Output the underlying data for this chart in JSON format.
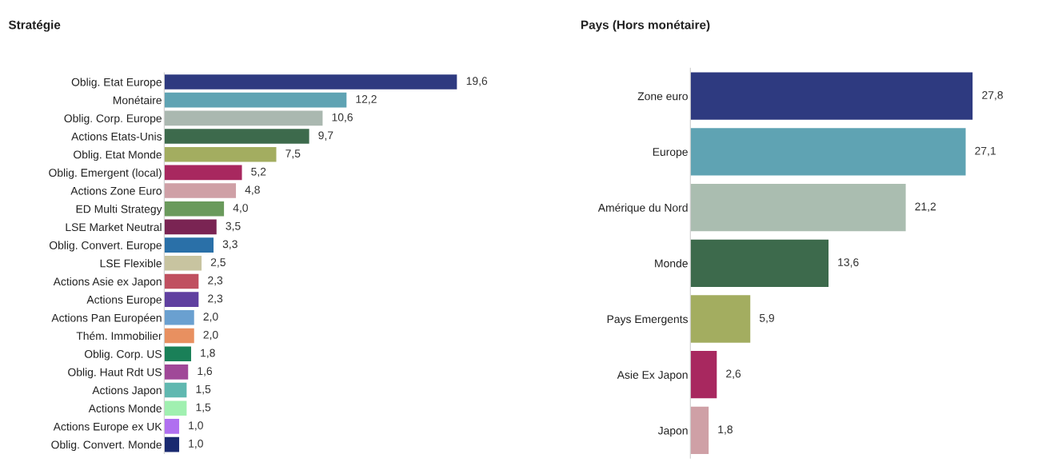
{
  "chart_data": [
    {
      "type": "bar",
      "orientation": "horizontal",
      "title": "Stratégie",
      "categories": [
        "Oblig. Etat Europe",
        "Monétaire",
        "Oblig. Corp. Europe",
        "Actions Etats-Unis",
        "Oblig. Etat Monde",
        "Oblig. Emergent (local)",
        "Actions Zone Euro",
        "ED Multi Strategy",
        "LSE Market Neutral",
        "Oblig. Convert. Europe",
        "LSE Flexible",
        "Actions Asie ex Japon",
        "Actions Europe",
        "Actions Pan Européen",
        "Thém. Immobilier",
        "Oblig. Corp. US",
        "Oblig. Haut Rdt US",
        "Actions Japon",
        "Actions Monde",
        "Actions Europe ex UK",
        "Oblig. Convert. Monde"
      ],
      "values": [
        19.6,
        12.2,
        10.6,
        9.7,
        7.5,
        5.2,
        4.8,
        4.0,
        3.5,
        3.3,
        2.5,
        2.3,
        2.3,
        2.0,
        2.0,
        1.8,
        1.6,
        1.5,
        1.5,
        1.0,
        1.0
      ],
      "value_labels": [
        "19,6",
        "12,2",
        "10,6",
        "9,7",
        "7,5",
        "5,2",
        "4,8",
        "4,0",
        "3,5",
        "3,3",
        "2,5",
        "2,3",
        "2,3",
        "2,0",
        "2,0",
        "1,8",
        "1,6",
        "1,5",
        "1,5",
        "1,0",
        "1,0"
      ],
      "colors": [
        "#2e3a80",
        "#5fa3b3",
        "#aab8b0",
        "#3d6a4c",
        "#a3ad60",
        "#a8285f",
        "#cfa0a6",
        "#6a9a5c",
        "#7a2453",
        "#2a70a8",
        "#c8c4a0",
        "#c05060",
        "#6040a0",
        "#6aa0d0",
        "#e89060",
        "#1a8058",
        "#a04898",
        "#60b8b0",
        "#a0f0b0",
        "#b070f0",
        "#1a2a70"
      ],
      "xlim": [
        0,
        19.6
      ],
      "tick_labels": "y"
    },
    {
      "type": "bar",
      "orientation": "horizontal",
      "title": "Pays (Hors monétaire)",
      "categories": [
        "Zone euro",
        "Europe",
        "Amérique du Nord",
        "Monde",
        "Pays Emergents",
        "Asie Ex Japon",
        "Japon"
      ],
      "values": [
        27.8,
        27.1,
        21.2,
        13.6,
        5.9,
        2.6,
        1.8
      ],
      "value_labels": [
        "27,8",
        "27,1",
        "21,2",
        "13,6",
        "5,9",
        "2,6",
        "1,8"
      ],
      "colors": [
        "#2e3a80",
        "#5fa3b3",
        "#aabdb0",
        "#3d6a4c",
        "#a3ad60",
        "#a8285f",
        "#cfa0a6"
      ],
      "xlim": [
        0,
        27.8
      ],
      "tick_labels": "y"
    }
  ]
}
